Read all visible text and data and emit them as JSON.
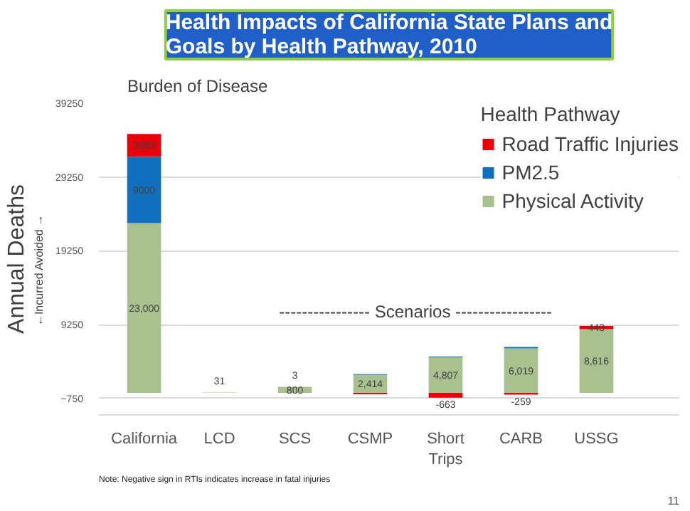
{
  "chart_data": {
    "type": "bar",
    "stacked": true,
    "title": "Health Impacts of California State Plans and Goals by Health Pathway, 2010",
    "subtitle": "Burden of Disease",
    "ylabel": "Annual Deaths",
    "legend_title": "Health Pathway",
    "categories": [
      "California",
      "LCD",
      "SCS",
      "CSMP",
      "Short Trips",
      "CARB",
      "USSG"
    ],
    "series": [
      {
        "name": "Physical Activity",
        "color": "#a9c18f",
        "values": [
          23000,
          31,
          800,
          2414,
          4807,
          6019,
          8616
        ],
        "value_labels": [
          "23,000",
          "31",
          "800",
          "2,414",
          "4,807",
          "6,019",
          "8,616"
        ]
      },
      {
        "name": "PM2.5",
        "color": "#1170bd",
        "values": [
          9000,
          0,
          0,
          100,
          100,
          200,
          0
        ],
        "value_labels": [
          "9000",
          null,
          null,
          null,
          null,
          null,
          null
        ]
      },
      {
        "name": "Road Traffic Injuries",
        "color": "#e8000b",
        "values": [
          3083,
          0,
          3,
          -200,
          -663,
          -259,
          443
        ],
        "value_labels": [
          "3083",
          null,
          "3",
          null,
          "-663",
          "-259",
          "443"
        ]
      }
    ],
    "ylim": [
      -3000,
      39250
    ],
    "yticks": [
      -750,
      9250,
      19250,
      29250,
      39250
    ],
    "grid": "y",
    "legend": "top right",
    "annotations": [
      "---------------- Scenarios -----------------",
      "←Incurred        Avoided →",
      "Note: Negative sign in RTIs indicates increase in fatal injuries",
      "11"
    ]
  }
}
